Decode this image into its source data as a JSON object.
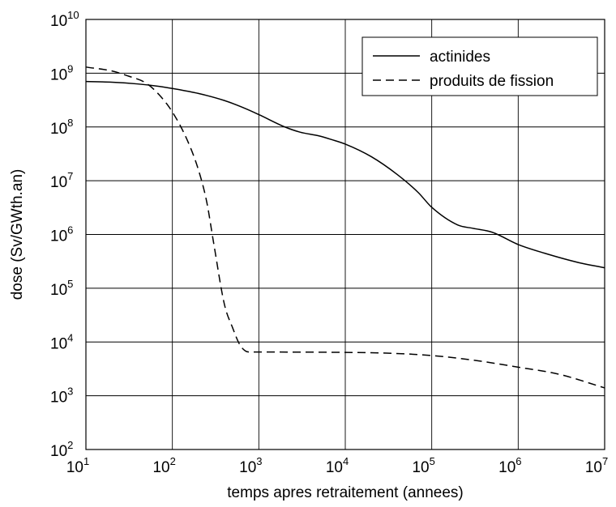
{
  "chart_data": {
    "type": "line",
    "title": "",
    "xlabel": "temps apres retraitement (annees)",
    "ylabel": "dose (Sv/GWth.an)",
    "xscale": "log",
    "yscale": "log",
    "xlim": [
      10,
      10000000
    ],
    "ylim": [
      100,
      10000000000
    ],
    "x_ticks": [
      {
        "base": "10",
        "exp": "1"
      },
      {
        "base": "10",
        "exp": "2"
      },
      {
        "base": "10",
        "exp": "3"
      },
      {
        "base": "10",
        "exp": "4"
      },
      {
        "base": "10",
        "exp": "5"
      },
      {
        "base": "10",
        "exp": "6"
      },
      {
        "base": "10",
        "exp": "7"
      }
    ],
    "y_ticks": [
      {
        "base": "10",
        "exp": "2"
      },
      {
        "base": "10",
        "exp": "3"
      },
      {
        "base": "10",
        "exp": "4"
      },
      {
        "base": "10",
        "exp": "5"
      },
      {
        "base": "10",
        "exp": "6"
      },
      {
        "base": "10",
        "exp": "7"
      },
      {
        "base": "10",
        "exp": "8"
      },
      {
        "base": "10",
        "exp": "9"
      },
      {
        "base": "10",
        "exp": "10"
      }
    ],
    "grid": true,
    "legend_position": "top-right",
    "series": [
      {
        "name": "actinides",
        "style": "solid",
        "color": "#000000",
        "points": [
          [
            10,
            700000000.0
          ],
          [
            20,
            680000000.0
          ],
          [
            40,
            630000000.0
          ],
          [
            70,
            570000000.0
          ],
          [
            100,
            520000000.0
          ],
          [
            200,
            420000000.0
          ],
          [
            400,
            310000000.0
          ],
          [
            700,
            220000000.0
          ],
          [
            1000,
            170000000.0
          ],
          [
            2000,
            100000000.0
          ],
          [
            3000,
            80000000.0
          ],
          [
            5000,
            68000000.0
          ],
          [
            7000,
            58000000.0
          ],
          [
            10000,
            48000000.0
          ],
          [
            20000,
            28000000.0
          ],
          [
            40000,
            13000000.0
          ],
          [
            70000,
            6000000.0
          ],
          [
            100000,
            3200000.0
          ],
          [
            200000,
            1500000.0
          ],
          [
            300000,
            1300000.0
          ],
          [
            500000,
            1100000.0
          ],
          [
            1000000,
            650000.0
          ],
          [
            2000000,
            450000.0
          ],
          [
            5000000,
            300000.0
          ],
          [
            10000000,
            240000.0
          ]
        ]
      },
      {
        "name": "produits de fission",
        "style": "dashed",
        "color": "#000000",
        "points": [
          [
            10,
            1300000000.0
          ],
          [
            20,
            1100000000.0
          ],
          [
            30,
            900000000.0
          ],
          [
            50,
            650000000.0
          ],
          [
            70,
            400000000.0
          ],
          [
            100,
            190000000.0
          ],
          [
            150,
            55000000.0
          ],
          [
            200,
            16000000.0
          ],
          [
            250,
            4000000.0
          ],
          [
            300,
            700000.0
          ],
          [
            400,
            50000.0
          ],
          [
            500,
            18000.0
          ],
          [
            600,
            9000.0
          ],
          [
            700,
            6800.0
          ],
          [
            800,
            6500.0
          ],
          [
            1000,
            6500.0
          ],
          [
            10000,
            6400.0
          ],
          [
            30000,
            6200.0
          ],
          [
            100000,
            5600.0
          ],
          [
            300000,
            4600.0
          ],
          [
            1000000,
            3400.0
          ],
          [
            3000000,
            2500.0
          ],
          [
            10000000,
            1400.0
          ]
        ]
      }
    ]
  }
}
